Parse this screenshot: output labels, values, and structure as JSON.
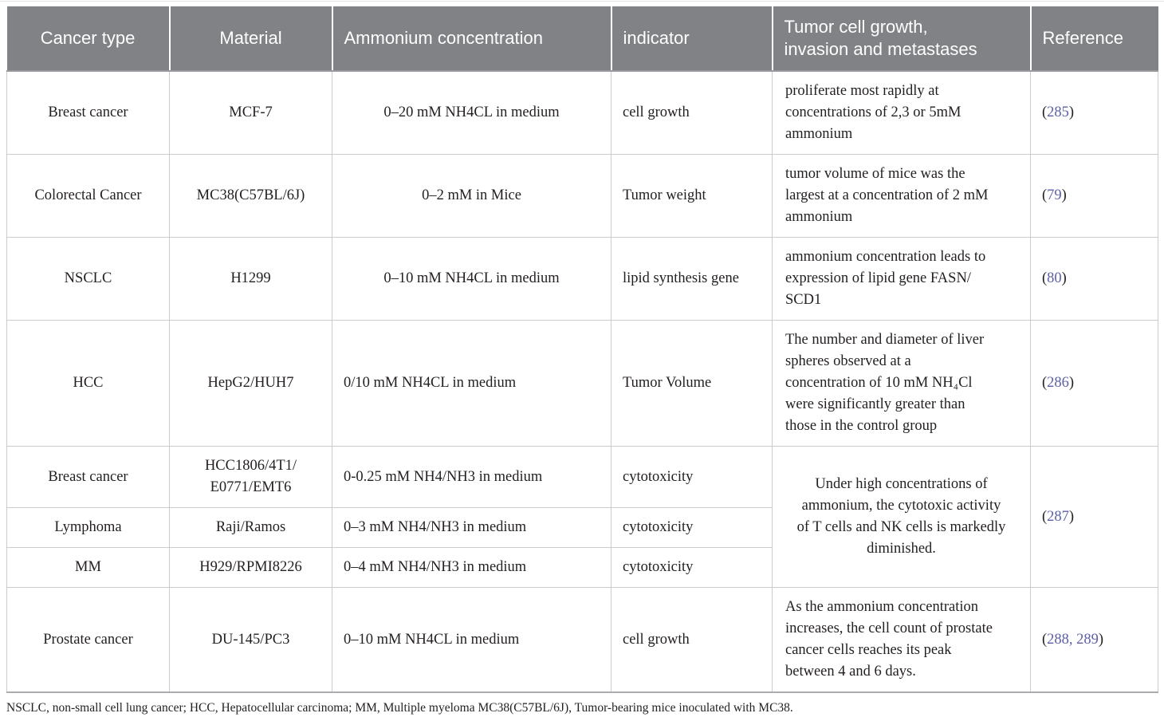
{
  "colors": {
    "header_background": "#808285",
    "header_text": "#ffffff",
    "body_text": "#231f20",
    "cell_border": "#cbcbcb",
    "reference_link": "#5c5fa8"
  },
  "header": {
    "columns": [
      {
        "label": "Cancer type",
        "align": "center"
      },
      {
        "label": "Material",
        "align": "center"
      },
      {
        "label": "Ammonium concentration",
        "align": "left"
      },
      {
        "label": "indicator",
        "align": "left"
      },
      {
        "label": "Tumor cell growth,\ninvasion and metastases",
        "align": "left"
      },
      {
        "label": "Reference",
        "align": "left"
      }
    ]
  },
  "rows": [
    {
      "cancer": "Breast cancer",
      "material": "MCF-7",
      "concentration": "0–20 mM NH4CL in medium",
      "conc_align": "center",
      "indicator": "cell growth",
      "growth": {
        "text": "proliferate most rapidly at\nconcentrations of 2,3 or 5mM\nammonium",
        "align": "left"
      },
      "reference": {
        "refs": [
          "285"
        ]
      }
    },
    {
      "cancer": "Colorectal Cancer",
      "material": "MC38(C57BL/6J)",
      "concentration": "0–2 mM in Mice",
      "conc_align": "center",
      "indicator": "Tumor weight",
      "growth": {
        "text": "tumor volume of mice was the\nlargest at a concentration of 2 mM\nammonium",
        "align": "left"
      },
      "reference": {
        "refs": [
          "79"
        ]
      }
    },
    {
      "cancer": "NSCLC",
      "material": "H1299",
      "concentration": "0–10 mM NH4CL in medium",
      "conc_align": "center",
      "indicator": "lipid synthesis gene",
      "growth": {
        "text": "ammonium concentration leads to\nexpression of lipid gene FASN/\nSCD1",
        "align": "left"
      },
      "reference": {
        "refs": [
          "80"
        ]
      }
    },
    {
      "cancer": "HCC",
      "material": "HepG2/HUH7",
      "concentration": "0/10 mM NH4CL in medium",
      "conc_align": "left",
      "indicator": "Tumor Volume",
      "growth": {
        "text": "The number and diameter of liver\nspheres observed at a\nconcentration of 10 mM NH₄Cl\nwere significantly greater than\nthose in the control group",
        "align": "left"
      },
      "reference": {
        "refs": [
          "286"
        ]
      }
    },
    {
      "cancer": "Breast cancer",
      "material": "HCC1806/4T1/\nE0771/EMT6",
      "concentration": "0-0.25 mM NH4/NH3 in medium",
      "conc_align": "left",
      "indicator": "cytotoxicity",
      "growth": {
        "text": "Under high concentrations of\nammonium, the cytotoxic activity\nof T cells and NK cells is markedly\ndiminished.",
        "align": "center",
        "rowspan": 3
      },
      "reference": {
        "refs": [
          "287"
        ],
        "rowspan": 3
      }
    },
    {
      "cancer": "Lymphoma",
      "material": "Raji/Ramos",
      "concentration": "0–3 mM NH4/NH3 in medium",
      "conc_align": "left",
      "indicator": "cytotoxicity"
    },
    {
      "cancer": "MM",
      "material": "H929/RPMI8226",
      "concentration": "0–4 mM NH4/NH3 in medium",
      "conc_align": "left",
      "indicator": "cytotoxicity"
    },
    {
      "cancer": "Prostate cancer",
      "material": "DU-145/PC3",
      "concentration": "0–10 mM NH4CL in medium",
      "conc_align": "left",
      "indicator": "cell growth",
      "growth": {
        "text": "As the ammonium concentration\nincreases, the cell count of prostate\ncancer cells reaches its peak\nbetween 4 and 6 days.",
        "align": "left"
      },
      "reference": {
        "refs": [
          "288",
          "289"
        ]
      }
    }
  ],
  "reference_format": {
    "open": "(",
    "separator": ", ",
    "close": ")"
  },
  "footnote": "NSCLC, non-small cell lung cancer; HCC, Hepatocellular carcinoma; MM, Multiple myeloma MC38(C57BL/6J), Tumor-bearing mice inoculated with MC38."
}
